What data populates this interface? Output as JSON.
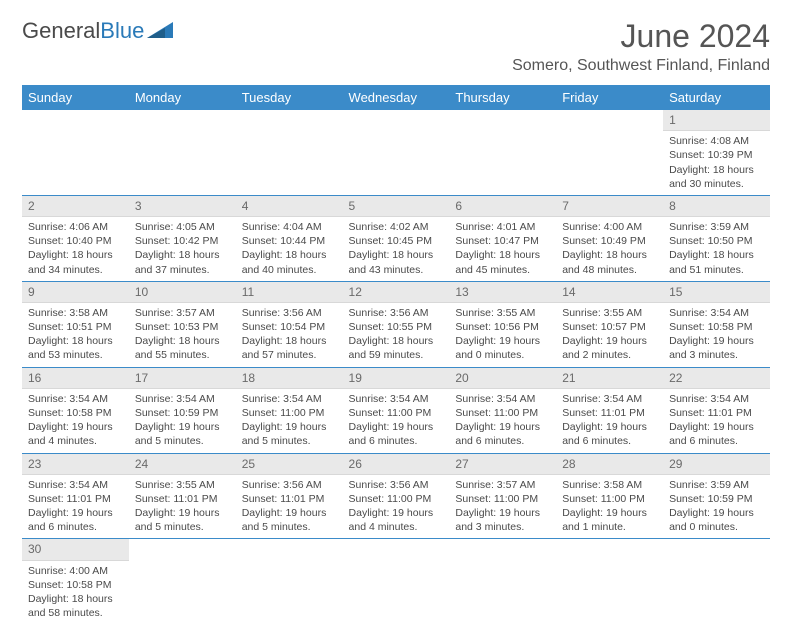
{
  "brand": {
    "part1": "General",
    "part2": "Blue"
  },
  "title": "June 2024",
  "location": "Somero, Southwest Finland, Finland",
  "colors": {
    "header_bg": "#3b8bc9",
    "header_text": "#ffffff",
    "daynum_bg": "#e9e9e9",
    "rule": "#3b8bc9",
    "brand_blue": "#2a7ab8"
  },
  "weekdays": [
    "Sunday",
    "Monday",
    "Tuesday",
    "Wednesday",
    "Thursday",
    "Friday",
    "Saturday"
  ],
  "weeks": [
    [
      null,
      null,
      null,
      null,
      null,
      null,
      {
        "n": "1",
        "sunrise": "Sunrise: 4:08 AM",
        "sunset": "Sunset: 10:39 PM",
        "daylight": "Daylight: 18 hours and 30 minutes."
      }
    ],
    [
      {
        "n": "2",
        "sunrise": "Sunrise: 4:06 AM",
        "sunset": "Sunset: 10:40 PM",
        "daylight": "Daylight: 18 hours and 34 minutes."
      },
      {
        "n": "3",
        "sunrise": "Sunrise: 4:05 AM",
        "sunset": "Sunset: 10:42 PM",
        "daylight": "Daylight: 18 hours and 37 minutes."
      },
      {
        "n": "4",
        "sunrise": "Sunrise: 4:04 AM",
        "sunset": "Sunset: 10:44 PM",
        "daylight": "Daylight: 18 hours and 40 minutes."
      },
      {
        "n": "5",
        "sunrise": "Sunrise: 4:02 AM",
        "sunset": "Sunset: 10:45 PM",
        "daylight": "Daylight: 18 hours and 43 minutes."
      },
      {
        "n": "6",
        "sunrise": "Sunrise: 4:01 AM",
        "sunset": "Sunset: 10:47 PM",
        "daylight": "Daylight: 18 hours and 45 minutes."
      },
      {
        "n": "7",
        "sunrise": "Sunrise: 4:00 AM",
        "sunset": "Sunset: 10:49 PM",
        "daylight": "Daylight: 18 hours and 48 minutes."
      },
      {
        "n": "8",
        "sunrise": "Sunrise: 3:59 AM",
        "sunset": "Sunset: 10:50 PM",
        "daylight": "Daylight: 18 hours and 51 minutes."
      }
    ],
    [
      {
        "n": "9",
        "sunrise": "Sunrise: 3:58 AM",
        "sunset": "Sunset: 10:51 PM",
        "daylight": "Daylight: 18 hours and 53 minutes."
      },
      {
        "n": "10",
        "sunrise": "Sunrise: 3:57 AM",
        "sunset": "Sunset: 10:53 PM",
        "daylight": "Daylight: 18 hours and 55 minutes."
      },
      {
        "n": "11",
        "sunrise": "Sunrise: 3:56 AM",
        "sunset": "Sunset: 10:54 PM",
        "daylight": "Daylight: 18 hours and 57 minutes."
      },
      {
        "n": "12",
        "sunrise": "Sunrise: 3:56 AM",
        "sunset": "Sunset: 10:55 PM",
        "daylight": "Daylight: 18 hours and 59 minutes."
      },
      {
        "n": "13",
        "sunrise": "Sunrise: 3:55 AM",
        "sunset": "Sunset: 10:56 PM",
        "daylight": "Daylight: 19 hours and 0 minutes."
      },
      {
        "n": "14",
        "sunrise": "Sunrise: 3:55 AM",
        "sunset": "Sunset: 10:57 PM",
        "daylight": "Daylight: 19 hours and 2 minutes."
      },
      {
        "n": "15",
        "sunrise": "Sunrise: 3:54 AM",
        "sunset": "Sunset: 10:58 PM",
        "daylight": "Daylight: 19 hours and 3 minutes."
      }
    ],
    [
      {
        "n": "16",
        "sunrise": "Sunrise: 3:54 AM",
        "sunset": "Sunset: 10:58 PM",
        "daylight": "Daylight: 19 hours and 4 minutes."
      },
      {
        "n": "17",
        "sunrise": "Sunrise: 3:54 AM",
        "sunset": "Sunset: 10:59 PM",
        "daylight": "Daylight: 19 hours and 5 minutes."
      },
      {
        "n": "18",
        "sunrise": "Sunrise: 3:54 AM",
        "sunset": "Sunset: 11:00 PM",
        "daylight": "Daylight: 19 hours and 5 minutes."
      },
      {
        "n": "19",
        "sunrise": "Sunrise: 3:54 AM",
        "sunset": "Sunset: 11:00 PM",
        "daylight": "Daylight: 19 hours and 6 minutes."
      },
      {
        "n": "20",
        "sunrise": "Sunrise: 3:54 AM",
        "sunset": "Sunset: 11:00 PM",
        "daylight": "Daylight: 19 hours and 6 minutes."
      },
      {
        "n": "21",
        "sunrise": "Sunrise: 3:54 AM",
        "sunset": "Sunset: 11:01 PM",
        "daylight": "Daylight: 19 hours and 6 minutes."
      },
      {
        "n": "22",
        "sunrise": "Sunrise: 3:54 AM",
        "sunset": "Sunset: 11:01 PM",
        "daylight": "Daylight: 19 hours and 6 minutes."
      }
    ],
    [
      {
        "n": "23",
        "sunrise": "Sunrise: 3:54 AM",
        "sunset": "Sunset: 11:01 PM",
        "daylight": "Daylight: 19 hours and 6 minutes."
      },
      {
        "n": "24",
        "sunrise": "Sunrise: 3:55 AM",
        "sunset": "Sunset: 11:01 PM",
        "daylight": "Daylight: 19 hours and 5 minutes."
      },
      {
        "n": "25",
        "sunrise": "Sunrise: 3:56 AM",
        "sunset": "Sunset: 11:01 PM",
        "daylight": "Daylight: 19 hours and 5 minutes."
      },
      {
        "n": "26",
        "sunrise": "Sunrise: 3:56 AM",
        "sunset": "Sunset: 11:00 PM",
        "daylight": "Daylight: 19 hours and 4 minutes."
      },
      {
        "n": "27",
        "sunrise": "Sunrise: 3:57 AM",
        "sunset": "Sunset: 11:00 PM",
        "daylight": "Daylight: 19 hours and 3 minutes."
      },
      {
        "n": "28",
        "sunrise": "Sunrise: 3:58 AM",
        "sunset": "Sunset: 11:00 PM",
        "daylight": "Daylight: 19 hours and 1 minute."
      },
      {
        "n": "29",
        "sunrise": "Sunrise: 3:59 AM",
        "sunset": "Sunset: 10:59 PM",
        "daylight": "Daylight: 19 hours and 0 minutes."
      }
    ],
    [
      {
        "n": "30",
        "sunrise": "Sunrise: 4:00 AM",
        "sunset": "Sunset: 10:58 PM",
        "daylight": "Daylight: 18 hours and 58 minutes."
      },
      null,
      null,
      null,
      null,
      null,
      null
    ]
  ]
}
